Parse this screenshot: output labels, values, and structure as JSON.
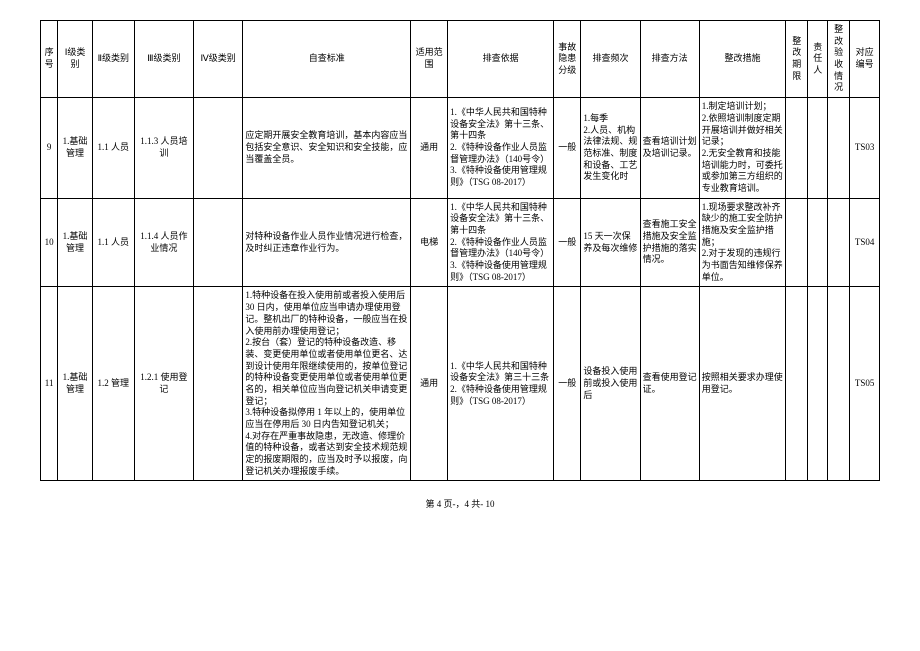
{
  "headers": {
    "seq": "序号",
    "l1": "Ⅰ级类别",
    "l2": "Ⅱ级类别",
    "l3": "Ⅲ级类别",
    "l4": "Ⅳ级类别",
    "std": "自查标准",
    "scope": "适用范围",
    "basis": "排查依据",
    "risk": "事故隐患分级",
    "freq": "排查频次",
    "method": "排查方法",
    "fix": "整改措施",
    "deadline": "整改期限",
    "resp": "责任人",
    "accept": "整改验收情况",
    "code": "对应编号"
  },
  "rows": [
    {
      "seq": "9",
      "l1": "1.基础管理",
      "l2": "1.1 人员",
      "l3": "1.1.3 人员培训",
      "l4": "",
      "std": "应定期开展安全教育培训，基本内容应当包括安全意识、安全知识和安全技能，应当覆盖全员。",
      "scope": "通用",
      "basis": "1.《中华人民共和国特种设备安全法》第十三条、第十四条\n2.《特种设备作业人员监督管理办法》（140号令）\n3.《特种设备使用管理规则》（TSG 08-2017）",
      "risk": "一般",
      "freq": "1.每季\n2.人员、机构法律法规、规范标准、制度和设备、工艺发生变化时",
      "method": "查看培训计划及培训记录。",
      "fix": "1.制定培训计划；\n2.依照培训制度定期开展培训并做好相关记录；\n2.无安全教育和技能培训能力时，可委托或参加第三方组织的专业教育培训。",
      "deadline": "",
      "resp": "",
      "accept": "",
      "code": "TS03"
    },
    {
      "seq": "10",
      "l1": "1.基础管理",
      "l2": "1.1 人员",
      "l3": "1.1.4 人员作业情况",
      "l4": "",
      "std": "对特种设备作业人员作业情况进行检查，及时纠正违章作业行为。",
      "scope": "电梯",
      "basis": "1.《中华人民共和国特种设备安全法》第十三条、第十四条\n2.《特种设备作业人员监督管理办法》（140号令）\n3.《特种设备使用管理规则》（TSG 08-2017）",
      "risk": "一般",
      "freq": "15 天一次保养及每次维修",
      "method": "查看施工安全措施及安全监护措施的落实情况。",
      "fix": "1.现场要求整改补齐缺少的施工安全防护措施及安全监护措施；\n2.对于发现的违规行为书面告知维修保养单位。",
      "deadline": "",
      "resp": "",
      "accept": "",
      "code": "TS04"
    },
    {
      "seq": "11",
      "l1": "1.基础管理",
      "l2": "1.2 管理",
      "l3": "1.2.1 使用登记",
      "l4": "",
      "std": "1.特种设备在投入使用前或者投入使用后 30 日内，使用单位应当申请办理使用登记。整机出厂的特种设备，一般应当在投入使用前办理使用登记；\n2.按台（套）登记的特种设备改造、移装、变更使用单位或者使用单位更名、达到设计使用年限继续使用的，按单位登记的特种设备变更使用单位或者使用单位更名的，相关单位应当向登记机关申请变更登记；\n3.特种设备拟停用 1 年以上的，使用单位应当在停用后 30 日内告知登记机关；\n4.对存在严重事故隐患，无改造、修理价值的特种设备，或者达到安全技术规范规定的报废期限的，应当及时予以报废，向登记机关办理报废手续。",
      "scope": "通用",
      "basis": "1.《中华人民共和国特种设备安全法》第三十三条\n2.《特种设备使用管理规则》（TSG 08-2017）",
      "risk": "一般",
      "freq": "设备投入使用前或投入使用后",
      "method": "查看使用登记证。",
      "fix": "按照相关要求办理使用登记。",
      "deadline": "",
      "resp": "",
      "accept": "",
      "code": "TS05"
    }
  ],
  "footer": "第 4 页-，4 共- 10"
}
